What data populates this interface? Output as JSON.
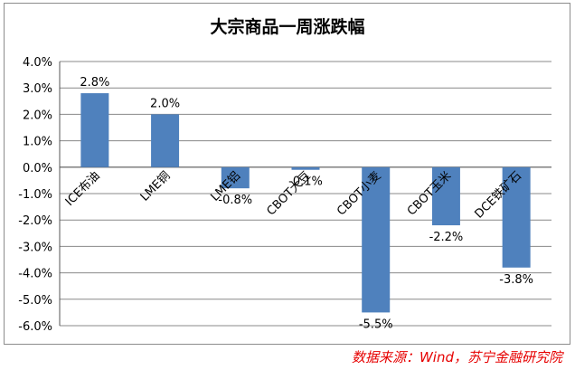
{
  "chart_data": {
    "type": "bar",
    "title": "大宗商品一周涨跌幅",
    "categories": [
      "ICE布油",
      "LME铜",
      "LME铝",
      "CBOT大豆",
      "CBOT小麦",
      "CBOT玉米",
      "DCE铁矿石"
    ],
    "values": [
      2.8,
      2.0,
      -0.8,
      -0.1,
      -5.5,
      -2.2,
      -3.8
    ],
    "data_labels": [
      "2.8%",
      "2.0%",
      "-0.8%",
      "-0.1%",
      "-5.5%",
      "-2.2%",
      "-3.8%"
    ],
    "ylim": [
      -6.0,
      4.0
    ],
    "yticks": [
      4.0,
      3.0,
      2.0,
      1.0,
      0.0,
      -1.0,
      -2.0,
      -3.0,
      -4.0,
      -5.0,
      -6.0
    ],
    "ytick_labels": [
      "4.0%",
      "3.0%",
      "2.0%",
      "1.0%",
      "0.0%",
      "-1.0%",
      "-2.0%",
      "-3.0%",
      "-4.0%",
      "-5.0%",
      "-6.0%"
    ],
    "grid": true,
    "legend": "none",
    "bar_color": "#4f81bd"
  },
  "source_note": "数据来源：Wind，苏宁金融研究院",
  "colors": {
    "source_text": "#e60000",
    "grid": "#888888",
    "axis": "#555555"
  }
}
